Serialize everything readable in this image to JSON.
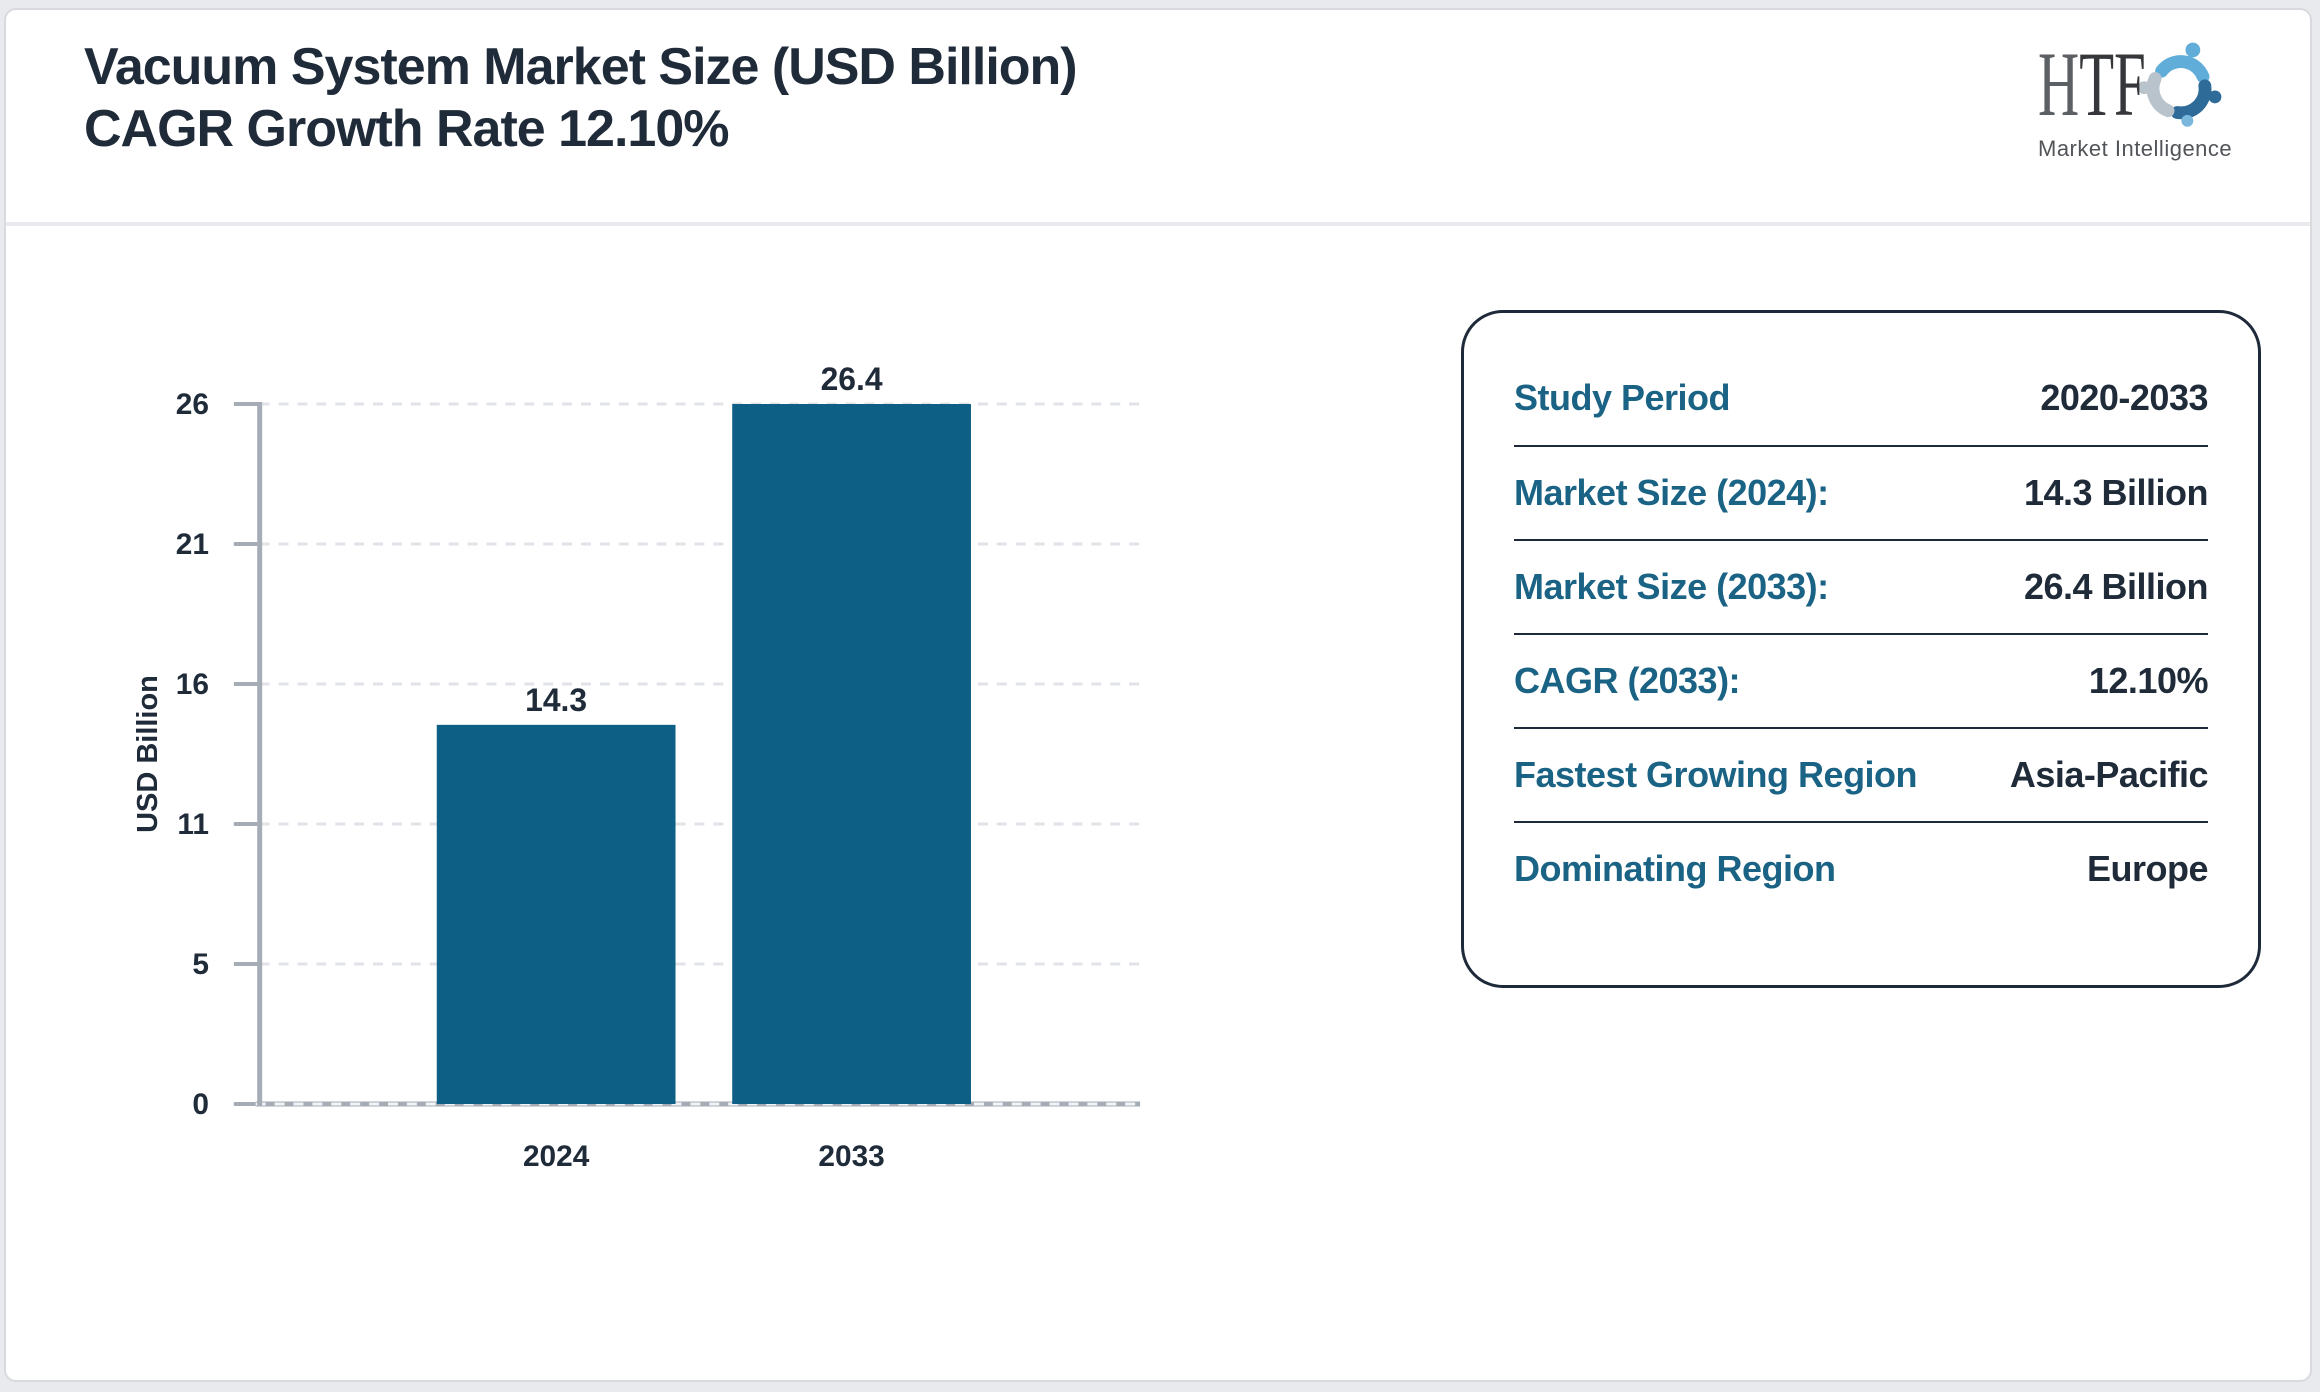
{
  "header": {
    "title_line1": "Vacuum System Market Size (USD Billion)",
    "title_line2": "CAGR Growth Rate 12.10%"
  },
  "logo": {
    "monogram_h": "H",
    "monogram_tf": "TF",
    "subtitle": "Market Intelligence",
    "icon_colors": {
      "light_blue": "#5fadd8",
      "dark_blue": "#2f6b99",
      "gray": "#b9c3cc"
    }
  },
  "chart_data": {
    "type": "bar",
    "title": "Vacuum System Market Size (USD Billion) CAGR Growth Rate 12.10%",
    "categories": [
      "2024",
      "2033"
    ],
    "values": [
      14.3,
      26.4
    ],
    "bar_labels": [
      "14.3",
      "26.4"
    ],
    "xlabel": "",
    "ylabel": "USD Billion",
    "ylim": [
      0,
      26.4
    ],
    "ytick_labels": [
      "0",
      "5",
      "11",
      "16",
      "21",
      "26"
    ],
    "grid": "horizontal dashed",
    "legend_position": "none",
    "bar_color": "#0d5f86"
  },
  "info_card": {
    "rows": [
      {
        "label": "Study Period",
        "value": "2020-2033"
      },
      {
        "label": "Market Size (2024):",
        "value": "14.3 Billion"
      },
      {
        "label": "Market Size (2033):",
        "value": "26.4 Billion"
      },
      {
        "label": "CAGR (2033):",
        "value": "12.10%"
      },
      {
        "label": "Fastest Growing Region",
        "value": "Asia-Pacific"
      },
      {
        "label": "Dominating Region",
        "value": "Europe"
      }
    ]
  },
  "colors": {
    "text_navy": "#202b3a",
    "label_teal": "#1b6385",
    "axis_gray": "#a6acb6",
    "grid_gray": "#e2e3e8",
    "page_border": "#d8dade",
    "background": "#e9eaee",
    "header_divider": "#e8e9ed"
  }
}
